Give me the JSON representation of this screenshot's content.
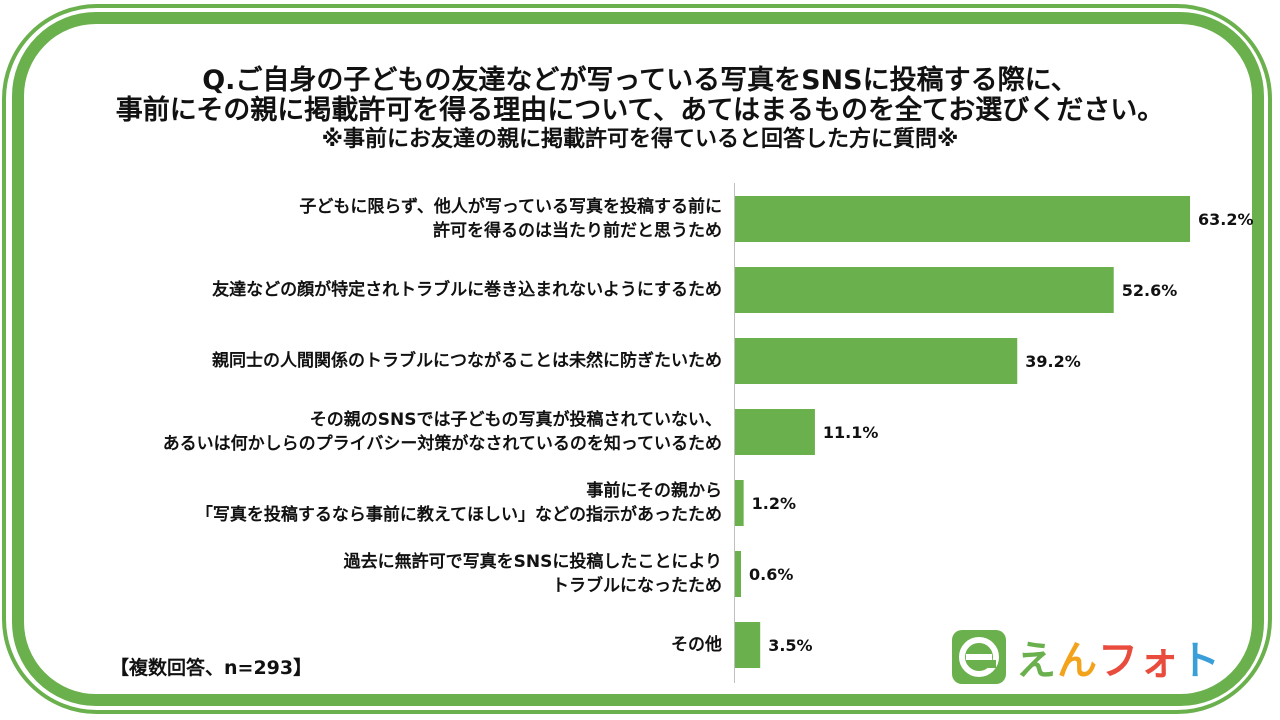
{
  "title": {
    "line1": "Q.ご自身の子どもの友達などが写っている写真をSNSに投稿する際に、",
    "line2": "事前にその親に掲載許可を得る理由について、あてはまるものを全てお選びください。",
    "line3": "※事前にお友達の親に掲載許可を得ていると回答した方に質問※"
  },
  "note": "【複数回答、n=293】",
  "logo": {
    "chars": [
      "え",
      "ん",
      "フォ",
      "ト"
    ],
    "colors": [
      "#6ab04c",
      "#f2a31b",
      "#e94b3c",
      "#3a9fd8"
    ]
  },
  "chart_data": {
    "type": "bar",
    "orientation": "horizontal",
    "categories": [
      [
        "子どもに限らず、他人が写っている写真を投稿する前に",
        "許可を得るのは当たり前だと思うため"
      ],
      [
        "友達などの顔が特定されトラブルに巻き込まれないようにするため"
      ],
      [
        "親同士の人間関係のトラブルにつながることは未然に防ぎたいため"
      ],
      [
        "その親のSNSでは子どもの写真が投稿されていない、",
        "あるいは何かしらのプライバシー対策がなされているのを知っているため"
      ],
      [
        "事前にその親から",
        "「写真を投稿するなら事前に教えてほしい」などの指示があったため"
      ],
      [
        "過去に無許可で写真をSNSに投稿したことにより",
        "トラブルになったため"
      ],
      [
        "その他"
      ]
    ],
    "values": [
      63.2,
      52.6,
      39.2,
      11.1,
      1.2,
      0.6,
      3.5
    ],
    "value_labels": [
      "63.2%",
      "52.6%",
      "39.2%",
      "11.1%",
      "1.2%",
      "0.6%",
      "3.5%"
    ],
    "xlim": [
      0,
      70
    ],
    "bar_color": "#6ab04c",
    "grid": false
  }
}
